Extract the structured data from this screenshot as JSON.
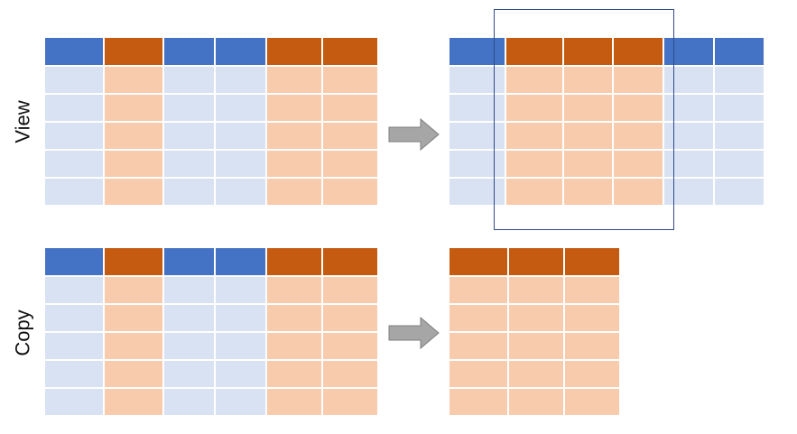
{
  "rows": [
    {
      "label": "View"
    },
    {
      "label": "Copy"
    }
  ],
  "colors": {
    "blue_header": "#4472C4",
    "orange_header": "#C55A11",
    "blue_cell": "#D9E2F3",
    "orange_cell": "#F8CBAD",
    "grid_line": "#ffffff",
    "arrow_fill": "#A6A6A6",
    "arrow_stroke": "#7F7F7F",
    "view_box": "#2F4A8A"
  },
  "source_table": {
    "column_kinds": [
      "blue",
      "orange",
      "blue",
      "blue",
      "orange",
      "orange"
    ],
    "body_rows": 5
  },
  "view_result_table": {
    "column_kinds": [
      "blue",
      "orange",
      "orange",
      "orange",
      "blue",
      "blue"
    ],
    "body_rows": 5,
    "selected_columns": [
      1,
      2,
      3
    ]
  },
  "copy_result_table": {
    "column_kinds": [
      "orange",
      "orange",
      "orange"
    ],
    "body_rows": 5
  }
}
